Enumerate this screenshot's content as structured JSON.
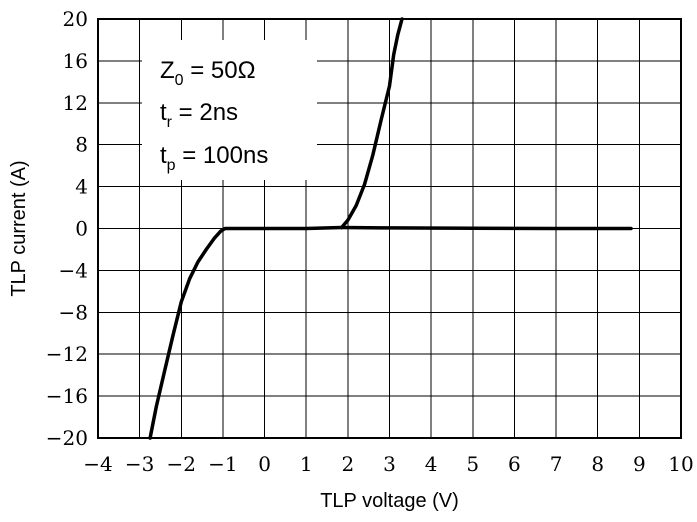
{
  "chart_data": {
    "type": "line",
    "xlabel": "TLP voltage (V)",
    "ylabel": "TLP current (A)",
    "xlim": [
      -4,
      10
    ],
    "ylim": [
      -20,
      20
    ],
    "x_ticks": [
      -4,
      -3,
      -2,
      -1,
      0,
      1,
      2,
      3,
      4,
      5,
      6,
      7,
      8,
      9,
      10
    ],
    "x_tick_labels": [
      "−4",
      "−3",
      "−2",
      "−1",
      "0",
      "1",
      "2",
      "3",
      "4",
      "5",
      "6",
      "7",
      "8",
      "9",
      "10"
    ],
    "y_ticks": [
      20,
      16,
      12,
      8,
      4,
      0,
      -4,
      -8,
      -12,
      -16,
      -20
    ],
    "y_tick_labels": [
      "20",
      "16",
      "12",
      "8",
      "4",
      "0",
      "−4",
      "−8",
      "−12",
      "−16",
      "−20"
    ],
    "grid": true,
    "line_color": "#000000",
    "annotation": {
      "lines": [
        {
          "main": "Z",
          "sub": "0",
          "rest": " = 50Ω"
        },
        {
          "main": "t",
          "sub": "r",
          "rest": " = 2ns"
        },
        {
          "main": "t",
          "sub": "p",
          "rest": " = 100ns"
        }
      ]
    },
    "series": [
      {
        "x": [
          -2.75,
          -2.6,
          -2.4,
          -2.2,
          -2.0,
          -1.8,
          -1.6,
          -1.4,
          -1.2,
          -1.05,
          -0.95,
          -0.9,
          0.0,
          1.0,
          1.85
        ],
        "y": [
          -20,
          -17.0,
          -13.6,
          -10.2,
          -7.0,
          -4.8,
          -3.2,
          -2.0,
          -0.9,
          -0.25,
          0.0,
          0.0,
          0.0,
          0.0,
          0.1
        ]
      },
      {
        "x": [
          1.85,
          2.0,
          2.2,
          2.4,
          2.6,
          2.8,
          3.0,
          3.1,
          3.2,
          3.3
        ],
        "y": [
          0.1,
          0.8,
          2.2,
          4.2,
          7.0,
          10.4,
          13.6,
          16.6,
          18.5,
          20
        ]
      },
      {
        "x": [
          1.85,
          3.0,
          5.0,
          7.0,
          8.8
        ],
        "y": [
          0.1,
          0.06,
          0.02,
          0.0,
          0.0
        ]
      }
    ]
  }
}
